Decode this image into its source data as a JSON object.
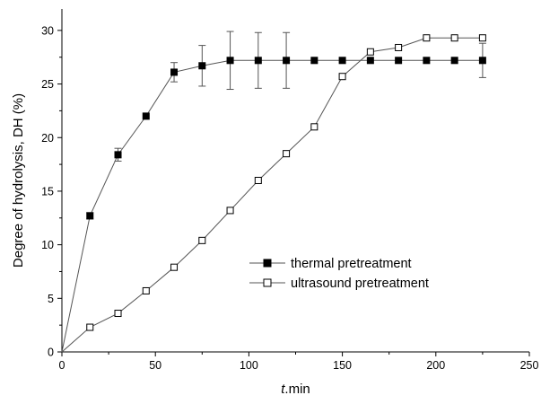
{
  "chart_data": {
    "type": "line",
    "xlabel_italic": "t",
    "xlabel_rest": ".min",
    "ylabel": "Degree of hydrolysis, DH (%)",
    "xlim": [
      0,
      250
    ],
    "ylim": [
      0,
      32
    ],
    "x_ticks": [
      0,
      50,
      100,
      150,
      200,
      250
    ],
    "y_ticks": [
      0,
      5,
      10,
      15,
      20,
      25,
      30
    ],
    "grid": false,
    "legend_position": "lower-right",
    "series": [
      {
        "name": "thermal pretreatment",
        "marker": "filled-square",
        "color": "#000000",
        "x": [
          0,
          15,
          30,
          45,
          60,
          75,
          90,
          105,
          120,
          135,
          150,
          165,
          180,
          195,
          210,
          225
        ],
        "y": [
          0,
          12.7,
          18.4,
          22.0,
          26.1,
          26.7,
          27.2,
          27.2,
          27.2,
          27.2,
          27.2,
          27.2,
          27.2,
          27.2,
          27.2,
          27.2
        ],
        "err": [
          0,
          0.3,
          0.6,
          0,
          0.9,
          1.9,
          2.7,
          2.6,
          2.6,
          0,
          0,
          0,
          0,
          0,
          0,
          1.6
        ]
      },
      {
        "name": "ultrasound pretreatment",
        "marker": "open-square",
        "color": "#000000",
        "x": [
          0,
          15,
          30,
          45,
          60,
          75,
          90,
          105,
          120,
          135,
          150,
          165,
          180,
          195,
          210,
          225
        ],
        "y": [
          0,
          2.3,
          3.6,
          5.7,
          7.9,
          10.4,
          13.2,
          16.0,
          18.5,
          21.0,
          25.7,
          28.0,
          28.4,
          29.3,
          29.3,
          29.3
        ],
        "err": []
      }
    ]
  }
}
